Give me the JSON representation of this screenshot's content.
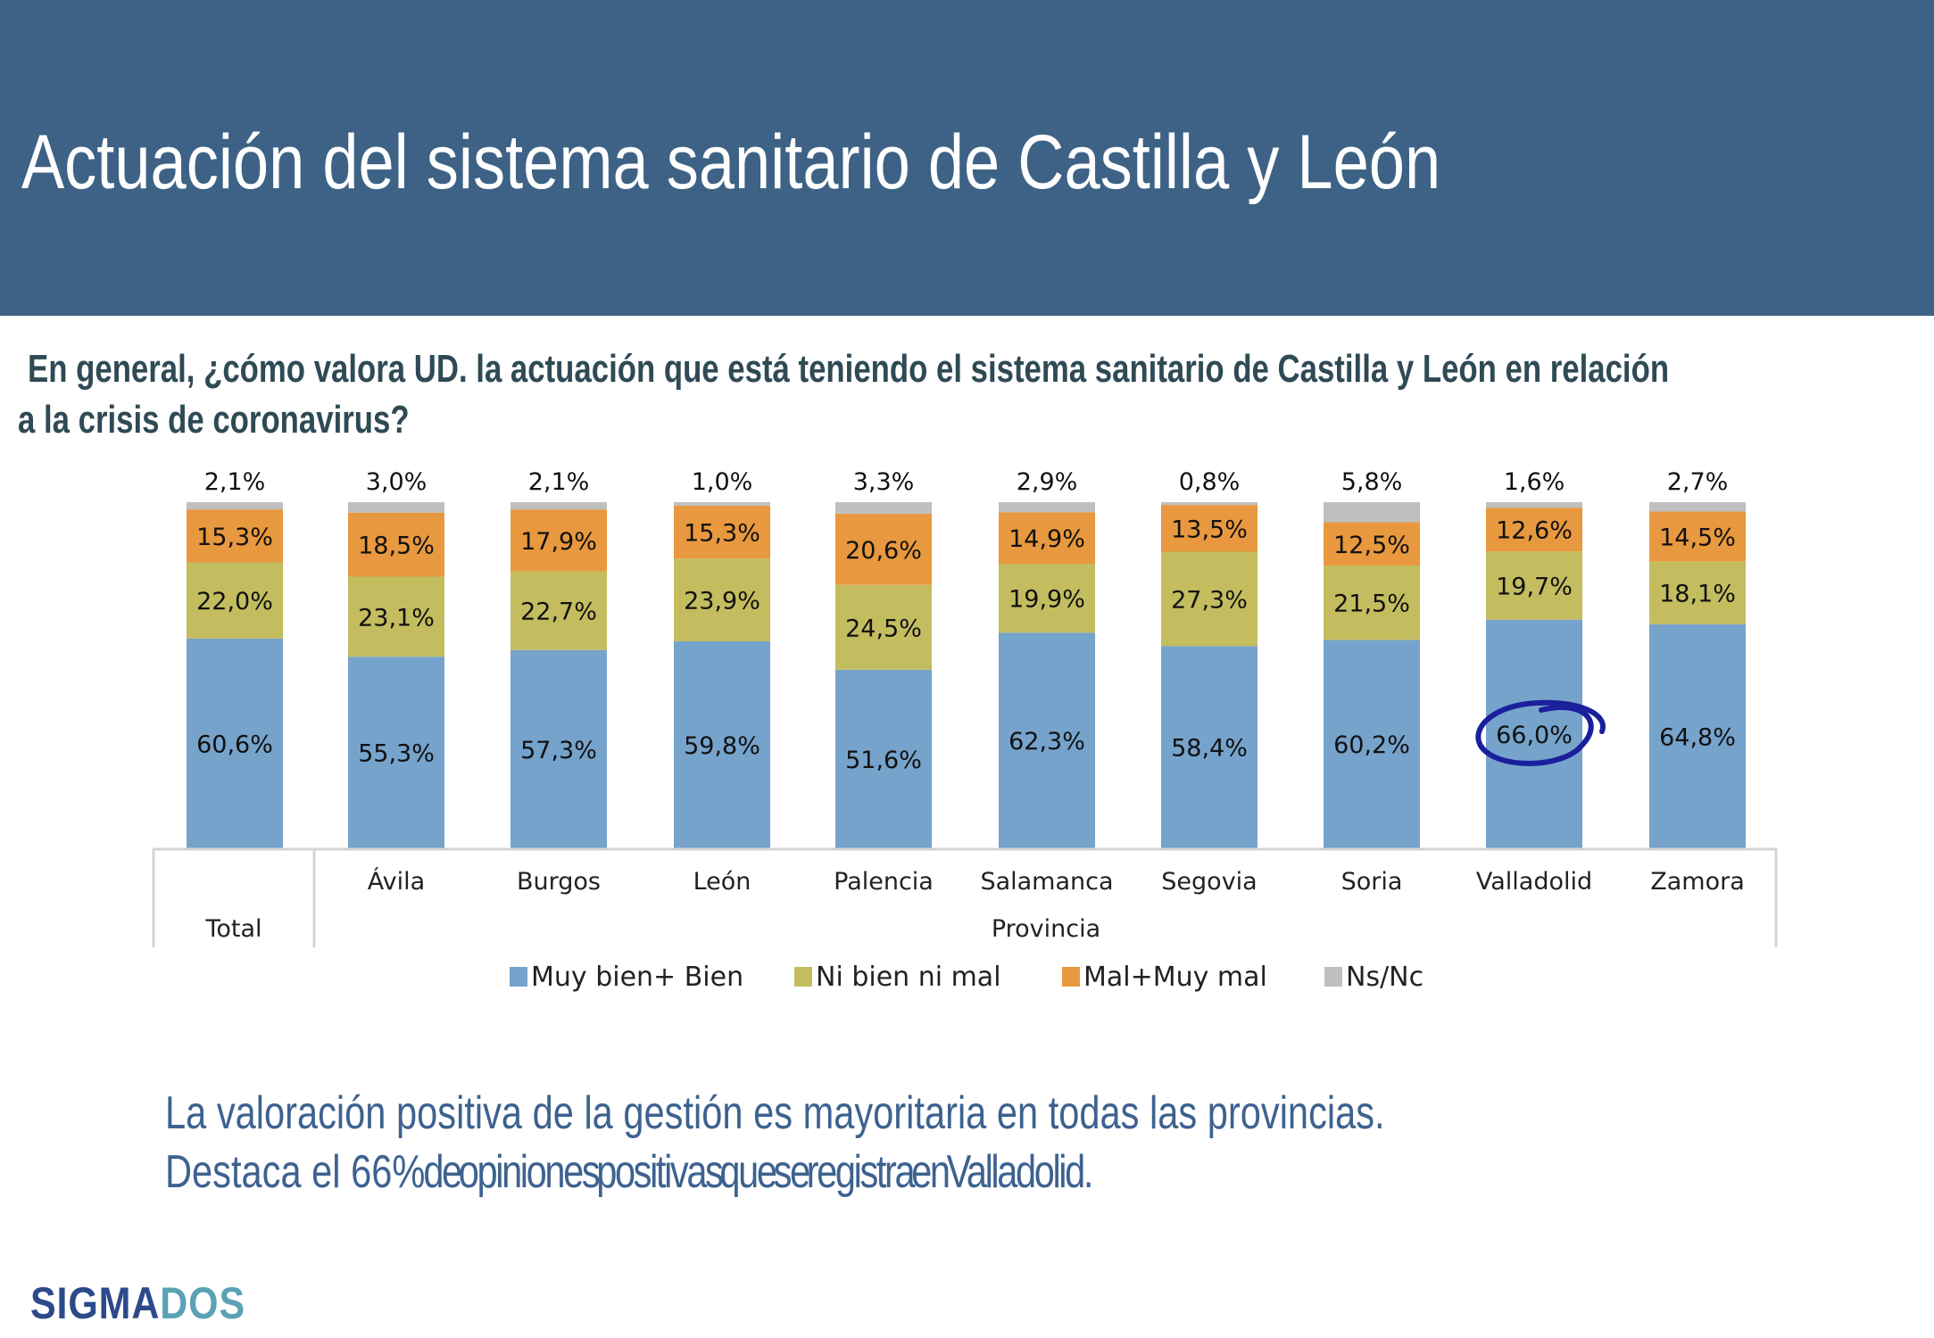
{
  "header": {
    "title": "Actuación del sistema sanitario de Castilla y León"
  },
  "question": {
    "line1": "En general, ¿cómo valora UD. la actuación que está teniendo el sistema sanitario de Castilla y León en relación",
    "line2": "a la crisis de coronavirus?"
  },
  "summary": {
    "line1": "La valoración positiva de la gestión es mayoritaria en todas las provincias.",
    "line2_start": "Destaca el  66%",
    "line2_rest": " de opiniones positivas que se registra en Valladolid."
  },
  "logo": {
    "part1": "SIGMA",
    "part2": "DOS"
  },
  "colors": {
    "header_bg": "#3d6285",
    "muy_bien": "#75a3cb",
    "ni_bien": "#c3bd5f",
    "mal": "#e8983e",
    "nsnc": "#bfbfbf",
    "highlight_circle": "#1a1f9c"
  },
  "chart_data": {
    "type": "bar",
    "stacked": true,
    "percent": true,
    "categories": [
      "Total",
      "Ávila",
      "Burgos",
      "León",
      "Palencia",
      "Salamanca",
      "Segovia",
      "Soria",
      "Valladolid",
      "Zamora"
    ],
    "group_labels": [
      {
        "label": "Total",
        "categories": [
          "Total"
        ]
      },
      {
        "label": "Provincia",
        "categories": [
          "Ávila",
          "Burgos",
          "León",
          "Palencia",
          "Salamanca",
          "Segovia",
          "Soria",
          "Valladolid",
          "Zamora"
        ]
      }
    ],
    "series": [
      {
        "name": "Muy bien+ Bien",
        "color": "#75a3cb",
        "values": [
          60.6,
          55.3,
          57.3,
          59.8,
          51.6,
          62.3,
          58.4,
          60.2,
          66.0,
          64.8
        ]
      },
      {
        "name": "Ni bien ni mal",
        "color": "#c3bd5f",
        "values": [
          22.0,
          23.1,
          22.7,
          23.9,
          24.5,
          19.9,
          27.3,
          21.5,
          19.7,
          18.1
        ]
      },
      {
        "name": "Mal+Muy mal",
        "color": "#e8983e",
        "values": [
          15.3,
          18.5,
          17.9,
          15.3,
          20.6,
          14.9,
          13.5,
          12.5,
          12.6,
          14.5
        ]
      },
      {
        "name": "Ns/Nc",
        "color": "#bfbfbf",
        "values": [
          2.1,
          3.0,
          2.1,
          1.0,
          3.3,
          2.9,
          0.8,
          5.8,
          1.6,
          2.7
        ]
      }
    ],
    "value_format": "comma-decimal-percent",
    "highlight": {
      "category": "Valladolid",
      "series": "Muy bien+ Bien",
      "style": "hand-drawn circle"
    },
    "title": "",
    "xlabel": "",
    "ylabel": "",
    "ylim": [
      0,
      100
    ],
    "grid": false,
    "legend": "bottom"
  }
}
